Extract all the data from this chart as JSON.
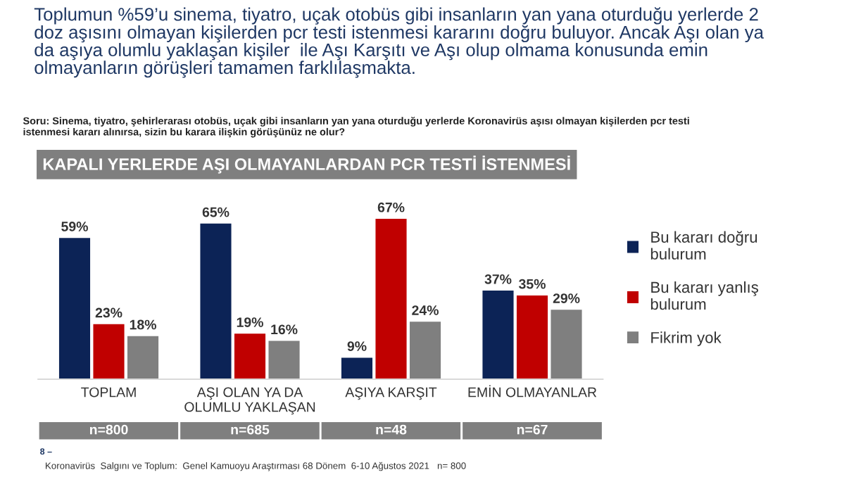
{
  "chart_data": {
    "type": "bar",
    "title": "Toplumun %59’u sinema, tiyatro, uçak otobüs gibi insanların yan yana oturduğu yerlerde 2\ndoz aşısını olmayan kişilerden pcr testi istenmesi kararını doğru buluyor. Ancak Aşı olan ya\nda aşıya olumlu yaklaşan kişiler  ile Aşı Karşıtı ve Aşı olup olmama konusunda emin\nolmayanların görüşleri tamamen farklılaşmakta.",
    "subtitle": "Soru: Sinema, tiyatro, şehirlerarası otobüs, uçak gibi insanların yan yana oturduğu yerlerde Koronavirüs aşısı olmayan kişilerden pcr testi\nistenmesi kararı alınırsa, sizin bu karara ilişkin görüşünüz ne olur?",
    "categories": [
      "TOPLAM",
      "AŞI OLAN YA DA\nOLUMLU YAKLAŞAN",
      "AŞIYA KARŞIT",
      "EMİN OLMAYANLAR"
    ],
    "series": [
      {
        "name": "Bu kararı doğru\nbulurum",
        "color": "#0c2356",
        "values": [
          59,
          65,
          9,
          37
        ],
        "value_labels": [
          "59%",
          "65%",
          "9%",
          "37%"
        ]
      },
      {
        "name": "Bu kararı yanlış\nbulurum",
        "color": "#c00000",
        "values": [
          23,
          19,
          67,
          35
        ],
        "value_labels": [
          "23%",
          "19%",
          "67%",
          "35%"
        ]
      },
      {
        "name": "Fikrim yok",
        "color": "#7f7f7f",
        "values": [
          18,
          16,
          24,
          29
        ],
        "value_labels": [
          "18%",
          "16%",
          "24%",
          "29%"
        ]
      }
    ],
    "legend": "right",
    "annotations": [
      "KAPALI YERLERDE AŞI OLMAYANLARDAN PCR TESTİ İSTENMESİ",
      "n=800",
      "n=685",
      "n=48",
      "n=67",
      "8 –",
      "Koronavirüs  Salgını ve Toplum:  Genel Kamuoyu Araştırması 68 Dönem  6-10 Ağustos 2021   n= 800"
    ]
  }
}
